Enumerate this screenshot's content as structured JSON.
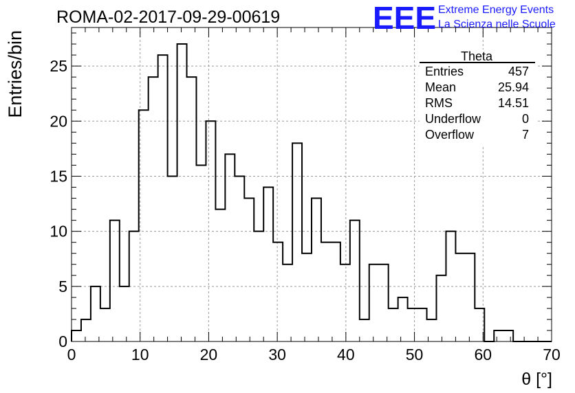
{
  "header": {
    "run_title": "ROMA-02-2017-09-29-00619",
    "logo_text": "EEE",
    "logo_line1": "Extreme Energy Events",
    "logo_line2": "La Scienza nelle Scuole",
    "brand_color": "#1a1aff"
  },
  "stats_box": {
    "title": "Theta",
    "rows": [
      {
        "label": "Entries",
        "value": "457"
      },
      {
        "label": "Mean",
        "value": "25.94"
      },
      {
        "label": "RMS",
        "value": "14.51"
      },
      {
        "label": "Underflow",
        "value": "0"
      },
      {
        "label": "Overflow",
        "value": "7"
      }
    ]
  },
  "chart_data": {
    "type": "bar",
    "subtype": "histogram",
    "title": "ROMA-02-2017-09-29-00619",
    "xlabel": "θ [°]",
    "ylabel": "Entries/bin",
    "xlim": [
      0,
      70
    ],
    "ylim": [
      0,
      28.5
    ],
    "bin_width": 1.4,
    "x_ticks": [
      0,
      10,
      20,
      30,
      40,
      50,
      60,
      70
    ],
    "y_ticks": [
      0,
      5,
      10,
      15,
      20,
      25
    ],
    "grid": true,
    "values": [
      1,
      2,
      5,
      3,
      11,
      5,
      10,
      21,
      24,
      26,
      15,
      27,
      24,
      16,
      20,
      12,
      17,
      15,
      13,
      10,
      14,
      9,
      7,
      18,
      8,
      13,
      9,
      9,
      7,
      11,
      2,
      7,
      7,
      3,
      4,
      3,
      3,
      2,
      6,
      10,
      8,
      8,
      3,
      0,
      1,
      1,
      0,
      0,
      0,
      0
    ],
    "line_color": "#000000"
  }
}
